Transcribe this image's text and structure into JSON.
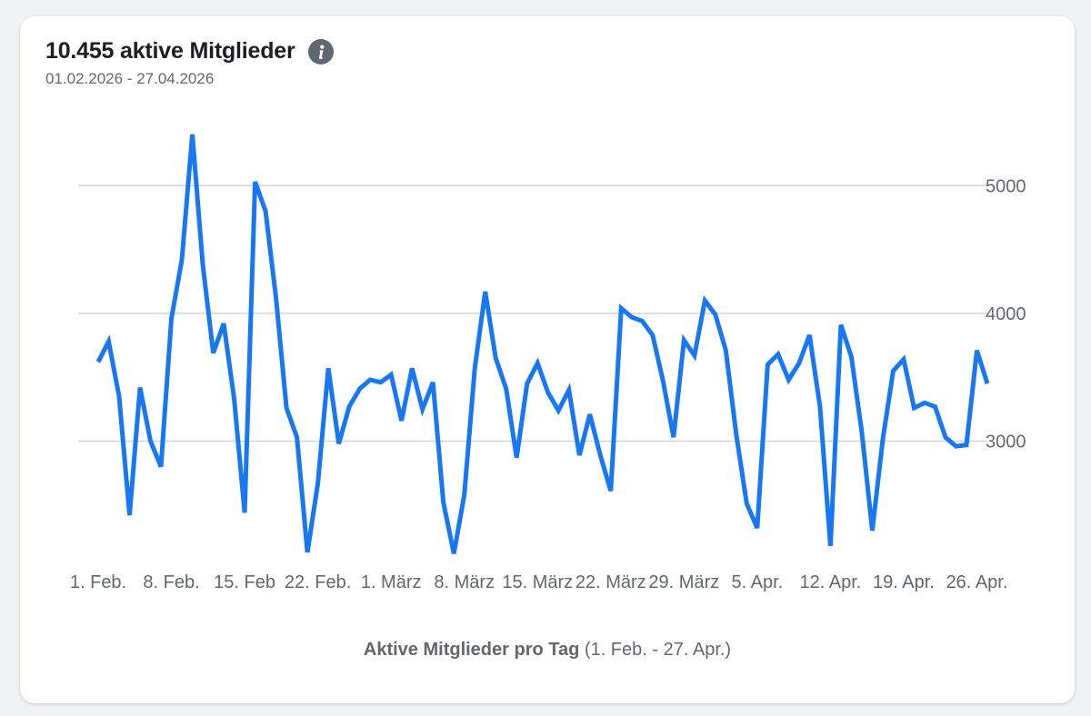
{
  "header": {
    "title": "10.455 aktive Mitglieder",
    "date_range": "01.02.2026 - 27.04.2026",
    "info_icon": "info-icon"
  },
  "caption": {
    "metric": "Aktive Mitglieder pro Tag",
    "range": "(1. Feb. - 27. Apr.)"
  },
  "colors": {
    "line": "#1877f2",
    "grid": "#d0d3d7",
    "text": "#606770"
  },
  "chart_data": {
    "type": "line",
    "start_date": "2026-02-01",
    "end_date": "2026-04-27",
    "ylim": [
      2200,
      5400
    ],
    "yticks": [
      3000,
      4000,
      5000
    ],
    "grid": "horizontal",
    "x_tick_labels": [
      "1. Feb.",
      "8. Feb.",
      "15. Feb",
      "22. Feb.",
      "1. März",
      "8. März",
      "15. März",
      "22. März",
      "29. März",
      "5. Apr.",
      "12. Apr.",
      "19. Apr.",
      "26. Apr."
    ],
    "series": [
      {
        "values": [
          3620,
          3780,
          3350,
          2420,
          3420,
          3000,
          2800,
          3960,
          4420,
          5400,
          4380,
          3690,
          3920,
          3330,
          2440,
          5030,
          4800,
          4120,
          3260,
          3030,
          2130,
          2670,
          3570,
          2980,
          3270,
          3410,
          3480,
          3460,
          3520,
          3160,
          3570,
          3250,
          3460,
          2520,
          2120,
          2580,
          3570,
          4170,
          3650,
          3410,
          2870,
          3450,
          3610,
          3380,
          3240,
          3400,
          2890,
          3210,
          2890,
          2610,
          4040,
          3970,
          3940,
          3830,
          3470,
          3030,
          3790,
          3670,
          4100,
          3990,
          3710,
          3050,
          2510,
          2320,
          3600,
          3680,
          3480,
          3610,
          3830,
          3270,
          2180,
          3910,
          3660,
          3070,
          2300,
          3010,
          3550,
          3640,
          3260,
          3300,
          3270,
          3030,
          2960,
          2970,
          3710,
          3450
        ]
      }
    ]
  }
}
